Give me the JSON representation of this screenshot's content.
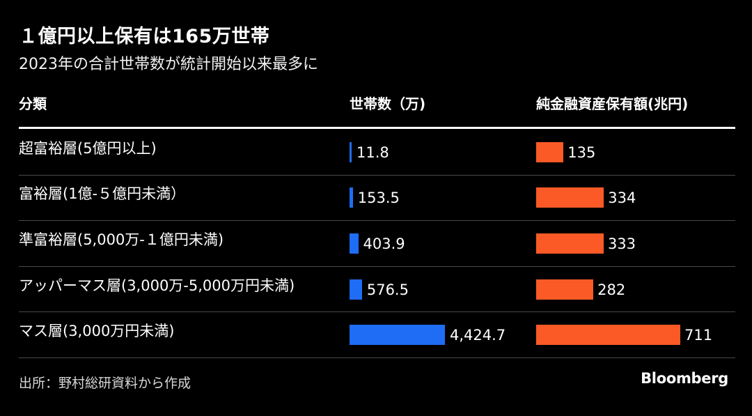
{
  "chart_data": {
    "type": "table",
    "title": "１億円以上保有は165万世帯",
    "subtitle": "2023年の合計世帯数が統計開始以来最多に",
    "columns": {
      "category": "分類",
      "households": "世帯数（万)",
      "assets": "純金融資産保有額(兆円)"
    },
    "categories": [
      "超富裕層(5億円以上)",
      "富裕層(1億-５億円未満）",
      "準富裕層(5,000万-１億円未満)",
      "アッパーマス層(3,000万-5,000万円未満)",
      "マス層(3,000万円未満)"
    ],
    "series": [
      {
        "name": "世帯数（万)",
        "values": [
          11.8,
          153.5,
          403.9,
          576.5,
          4424.7
        ],
        "labels": [
          "11.8",
          "153.5",
          "403.9",
          "576.5",
          "4,424.7"
        ],
        "color": "#1f6cf5"
      },
      {
        "name": "純金融資産保有額(兆円)",
        "values": [
          135,
          334,
          333,
          282,
          711
        ],
        "labels": [
          "135",
          "334",
          "333",
          "282",
          "711"
        ],
        "color": "#fb5a27"
      }
    ]
  },
  "source": "出所：野村総研資料から作成",
  "brand": "Bloomberg"
}
